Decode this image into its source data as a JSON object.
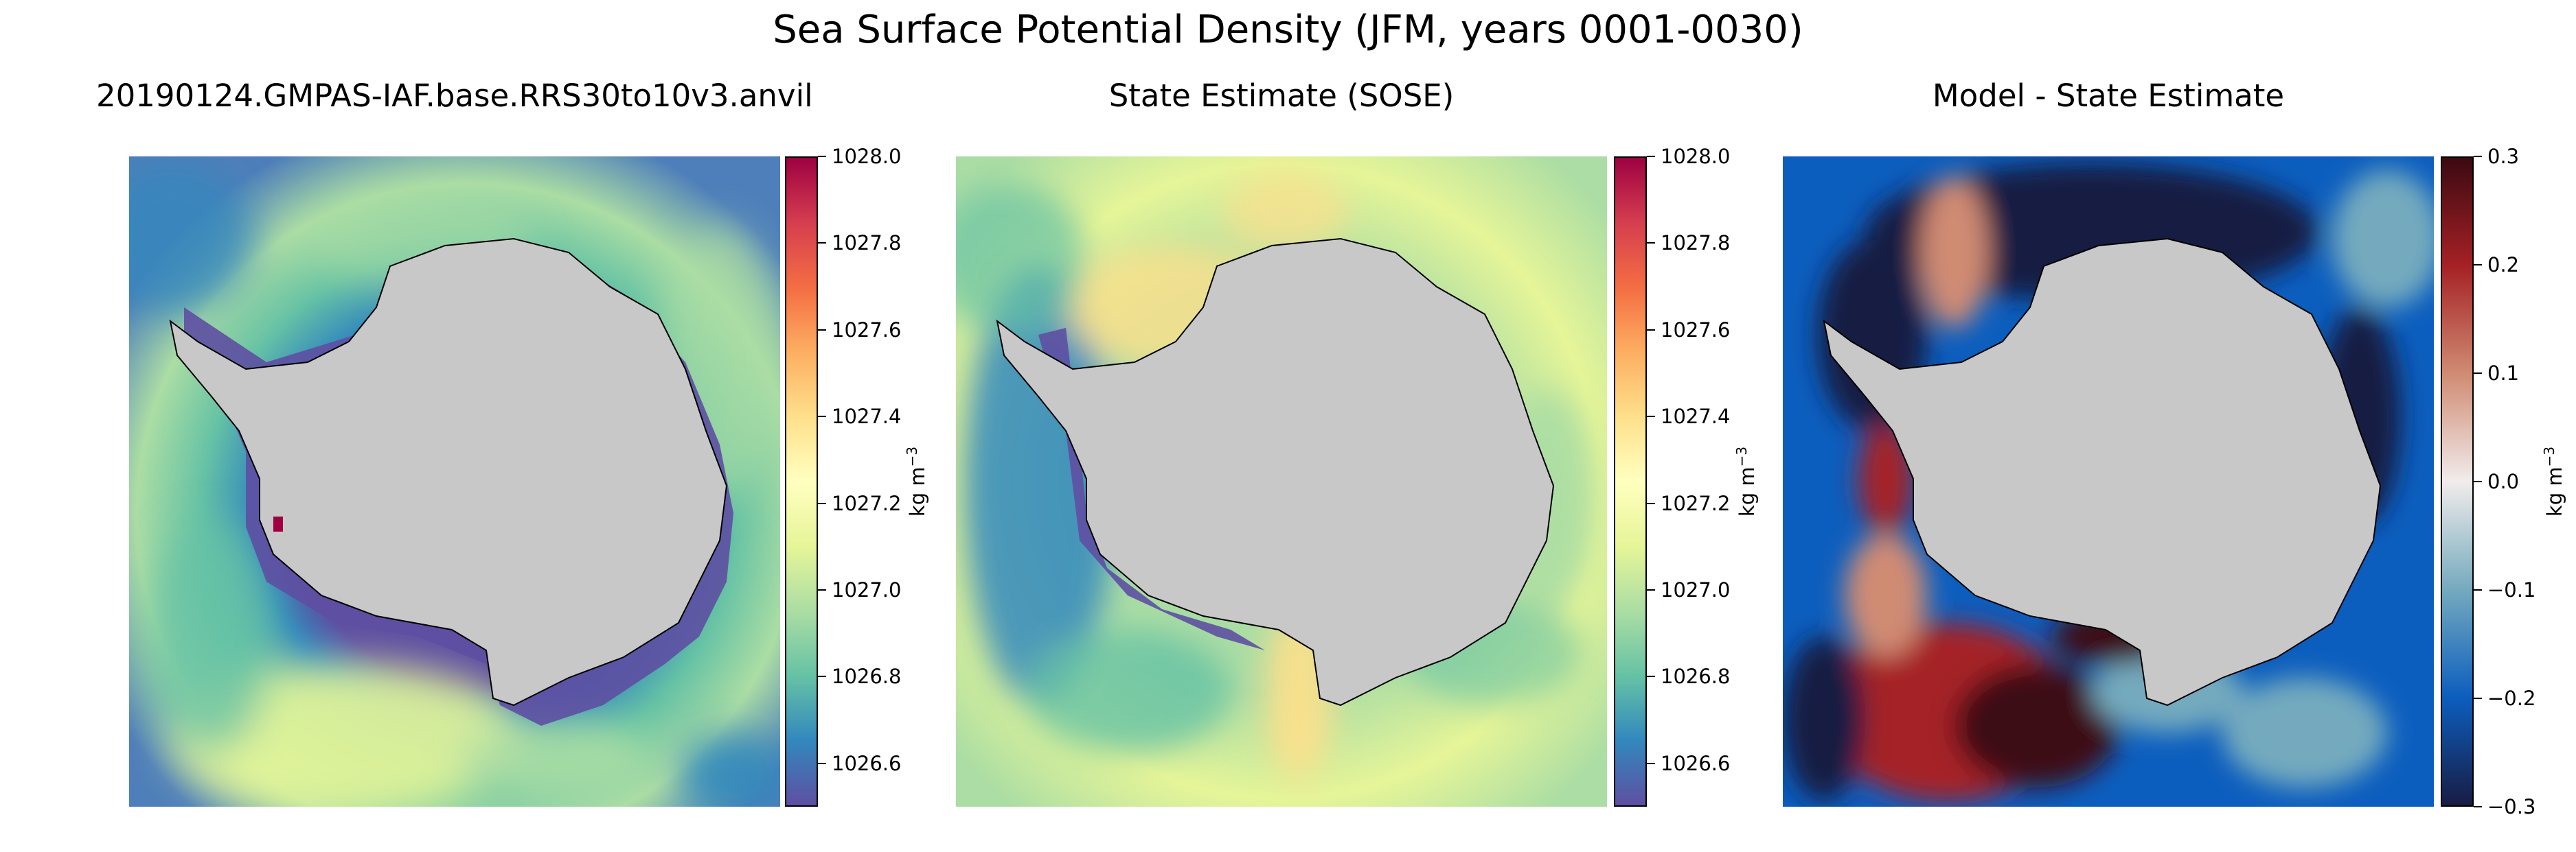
{
  "figure": {
    "title": "Sea Surface Potential Density (JFM, years 0001-0030)"
  },
  "colors": {
    "land": "#c8c8c8",
    "coast": "#000000",
    "spectral": [
      "#5e4fa2",
      "#3288bd",
      "#66c2a5",
      "#abdda4",
      "#e6f598",
      "#ffffbf",
      "#fee08b",
      "#fdae61",
      "#f46d43",
      "#d53e4f",
      "#9e0142"
    ],
    "balance": [
      "#181c43",
      "#0c5ebe",
      "#75aabe",
      "#f1eceb",
      "#d08b73",
      "#a52125",
      "#3c0912"
    ]
  },
  "panels": [
    {
      "title": "20190124.GMPAS-IAF.base.RRS30to10v3.anvil",
      "colorbar": {
        "colormap": "spectral",
        "range": [
          1026.5,
          1028.0
        ],
        "ticks": [
          "1026.6",
          "1026.8",
          "1027.0",
          "1027.2",
          "1027.4",
          "1027.6",
          "1027.8",
          "1028.0"
        ],
        "tick_values": [
          1026.6,
          1026.8,
          1027.0,
          1027.2,
          1027.4,
          1027.6,
          1027.8,
          1028.0
        ],
        "unit": "kg m",
        "unit_exp": "−3"
      }
    },
    {
      "title": "State Estimate (SOSE)",
      "colorbar": {
        "colormap": "spectral",
        "range": [
          1026.5,
          1028.0
        ],
        "ticks": [
          "1026.6",
          "1026.8",
          "1027.0",
          "1027.2",
          "1027.4",
          "1027.6",
          "1027.8",
          "1028.0"
        ],
        "tick_values": [
          1026.6,
          1026.8,
          1027.0,
          1027.2,
          1027.4,
          1027.6,
          1027.8,
          1028.0
        ],
        "unit": "kg m",
        "unit_exp": "−3"
      }
    },
    {
      "title": "Model - State Estimate",
      "colorbar": {
        "colormap": "balance",
        "range": [
          -0.3,
          0.3
        ],
        "ticks": [
          "−0.3",
          "−0.2",
          "−0.1",
          "0.0",
          "0.1",
          "0.2",
          "0.3"
        ],
        "tick_values": [
          -0.3,
          -0.2,
          -0.1,
          0.0,
          0.1,
          0.2,
          0.3
        ],
        "unit": "kg m",
        "unit_exp": "−3"
      }
    }
  ]
}
